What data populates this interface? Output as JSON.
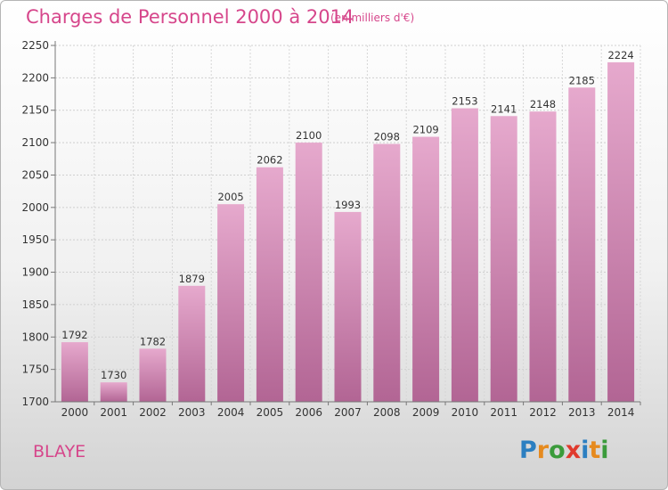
{
  "header": {
    "title": "Charges de Personnel 2000 à 2014",
    "subtitle": "(en milliers d'€)"
  },
  "footer": {
    "place": "BLAYE",
    "logo": {
      "text": "Proxiti",
      "letters": [
        "P",
        "r",
        "o",
        "x",
        "i",
        "t",
        "i"
      ],
      "colors": [
        "#2c7fc1",
        "#e68a1e",
        "#3b9b3b",
        "#e03a2d",
        "#2c7fc1",
        "#e68a1e",
        "#3b9b3b"
      ]
    }
  },
  "colors": {
    "bar": "#e6a9cd",
    "bar_dark": "#b26594",
    "accent": "#d6468b"
  },
  "chart_data": {
    "type": "bar",
    "title": "Charges de Personnel 2000 à 2014",
    "subtitle": "(en milliers d'€)",
    "categories": [
      "2000",
      "2001",
      "2002",
      "2003",
      "2004",
      "2005",
      "2006",
      "2007",
      "2008",
      "2009",
      "2010",
      "2011",
      "2012",
      "2013",
      "2014"
    ],
    "values": [
      1792,
      1730,
      1782,
      1879,
      2005,
      2062,
      2100,
      1993,
      2098,
      2109,
      2153,
      2141,
      2148,
      2185,
      2224
    ],
    "ylim": [
      1700,
      2250
    ],
    "yticks": [
      1700,
      1750,
      1800,
      1850,
      1900,
      1950,
      2000,
      2050,
      2100,
      2150,
      2200,
      2250
    ],
    "grid": true,
    "legend": "none"
  }
}
